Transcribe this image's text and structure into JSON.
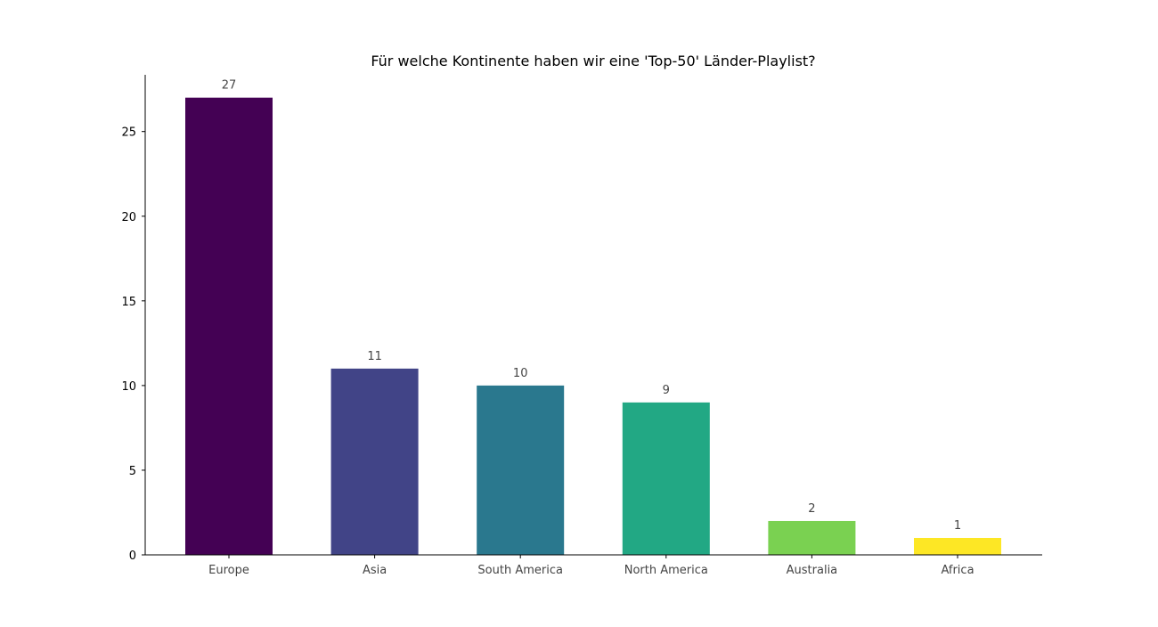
{
  "chart_data": {
    "type": "bar",
    "title": "Für welche Kontinente haben wir eine 'Top-50' Länder-Playlist?",
    "xlabel": "",
    "ylabel": "",
    "categories": [
      "Europe",
      "Asia",
      "South America",
      "North America",
      "Australia",
      "Africa"
    ],
    "values": [
      27,
      11,
      10,
      9,
      2,
      1
    ],
    "value_labels": [
      "27",
      "11",
      "10",
      "9",
      "2",
      "1"
    ],
    "colors": [
      "#440154",
      "#414487",
      "#2a788e",
      "#22a884",
      "#7ad151",
      "#fde725"
    ],
    "ylim": [
      0,
      28.35
    ],
    "yticks": [
      0,
      5,
      10,
      15,
      20,
      25
    ],
    "grid": false,
    "legend": "none"
  }
}
